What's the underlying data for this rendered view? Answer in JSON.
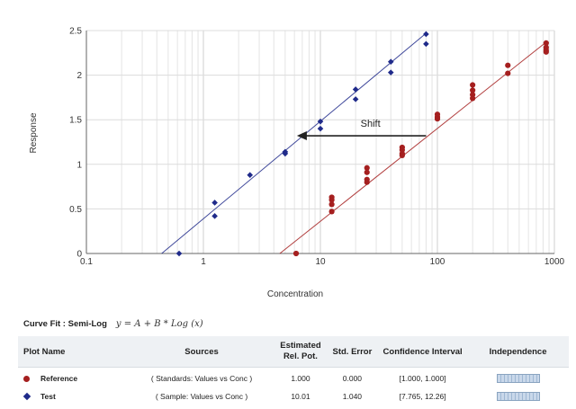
{
  "chart_data": {
    "type": "scatter",
    "xscale": "log",
    "xlim": [
      0.1,
      1000
    ],
    "ylim": [
      0,
      2.5
    ],
    "xlabel": "Concentration",
    "ylabel": "Response",
    "x_ticks": [
      0.1,
      1,
      10,
      100,
      1000
    ],
    "x_tick_labels": [
      "0.1",
      "1",
      "10",
      "100",
      "1000"
    ],
    "y_ticks": [
      0,
      0.5,
      1,
      1.5,
      2,
      2.5
    ],
    "y_tick_labels": [
      "0",
      "0.5",
      "1",
      "1.5",
      "2",
      "2.5"
    ],
    "grid": true,
    "annotation": {
      "text": "Shift",
      "arrow_from": [
        80,
        1.32
      ],
      "arrow_to": [
        6.3,
        1.32
      ]
    },
    "series": [
      {
        "name": "Test",
        "marker": "diamond",
        "color": "#1f2a8a",
        "fit_line": {
          "from": [
            0.44,
            0
          ],
          "to": [
            80,
            2.47
          ]
        },
        "points": [
          [
            0.62,
            0.0
          ],
          [
            1.25,
            0.57
          ],
          [
            1.25,
            0.42
          ],
          [
            2.5,
            0.88
          ],
          [
            5.0,
            1.12
          ],
          [
            5.0,
            1.14
          ],
          [
            10,
            1.48
          ],
          [
            10,
            1.4
          ],
          [
            20,
            1.84
          ],
          [
            20,
            1.73
          ],
          [
            40,
            2.15
          ],
          [
            40,
            2.03
          ],
          [
            80,
            2.46
          ],
          [
            80,
            2.35
          ]
        ]
      },
      {
        "name": "Reference",
        "marker": "circle",
        "color": "#a51f1f",
        "fit_line": {
          "from": [
            4.5,
            0
          ],
          "to": [
            850,
            2.37
          ]
        },
        "points": [
          [
            6.2,
            0.0
          ],
          [
            12.5,
            0.63
          ],
          [
            12.5,
            0.6
          ],
          [
            12.5,
            0.55
          ],
          [
            12.5,
            0.47
          ],
          [
            25,
            0.96
          ],
          [
            25,
            0.91
          ],
          [
            25,
            0.83
          ],
          [
            25,
            0.8
          ],
          [
            50,
            1.19
          ],
          [
            50,
            1.16
          ],
          [
            50,
            1.12
          ],
          [
            50,
            1.1
          ],
          [
            100,
            1.56
          ],
          [
            100,
            1.53
          ],
          [
            100,
            1.51
          ],
          [
            200,
            1.89
          ],
          [
            200,
            1.83
          ],
          [
            200,
            1.78
          ],
          [
            200,
            1.74
          ],
          [
            400,
            2.11
          ],
          [
            400,
            2.02
          ],
          [
            850,
            2.36
          ],
          [
            850,
            2.31
          ],
          [
            850,
            2.28
          ],
          [
            850,
            2.26
          ]
        ]
      }
    ]
  },
  "curve_fit": {
    "label": "Curve Fit : Semi-Log",
    "equation": "y = A + B * Log (x)"
  },
  "table": {
    "headers": {
      "plot_name": "Plot Name",
      "sources": "Sources",
      "est_line1": "Estimated",
      "est_line2": "Rel. Pot.",
      "std_error": "Std. Error",
      "ci": "Confidence Interval",
      "independence": "Independence"
    },
    "rows": [
      {
        "name": "Reference",
        "source": "( Standards: Values vs Conc )",
        "rel_pot": "1.000",
        "std_error": "0.000",
        "ci": "[1.000, 1.000]"
      },
      {
        "name": "Test",
        "source": "( Sample: Values vs Conc )",
        "rel_pot": "10.01",
        "std_error": "1.040",
        "ci": "[7.765, 12.26]"
      }
    ]
  },
  "colors": {
    "reference": "#a51f1f",
    "test": "#1f2a8a",
    "header_bg": "#eef1f4"
  }
}
